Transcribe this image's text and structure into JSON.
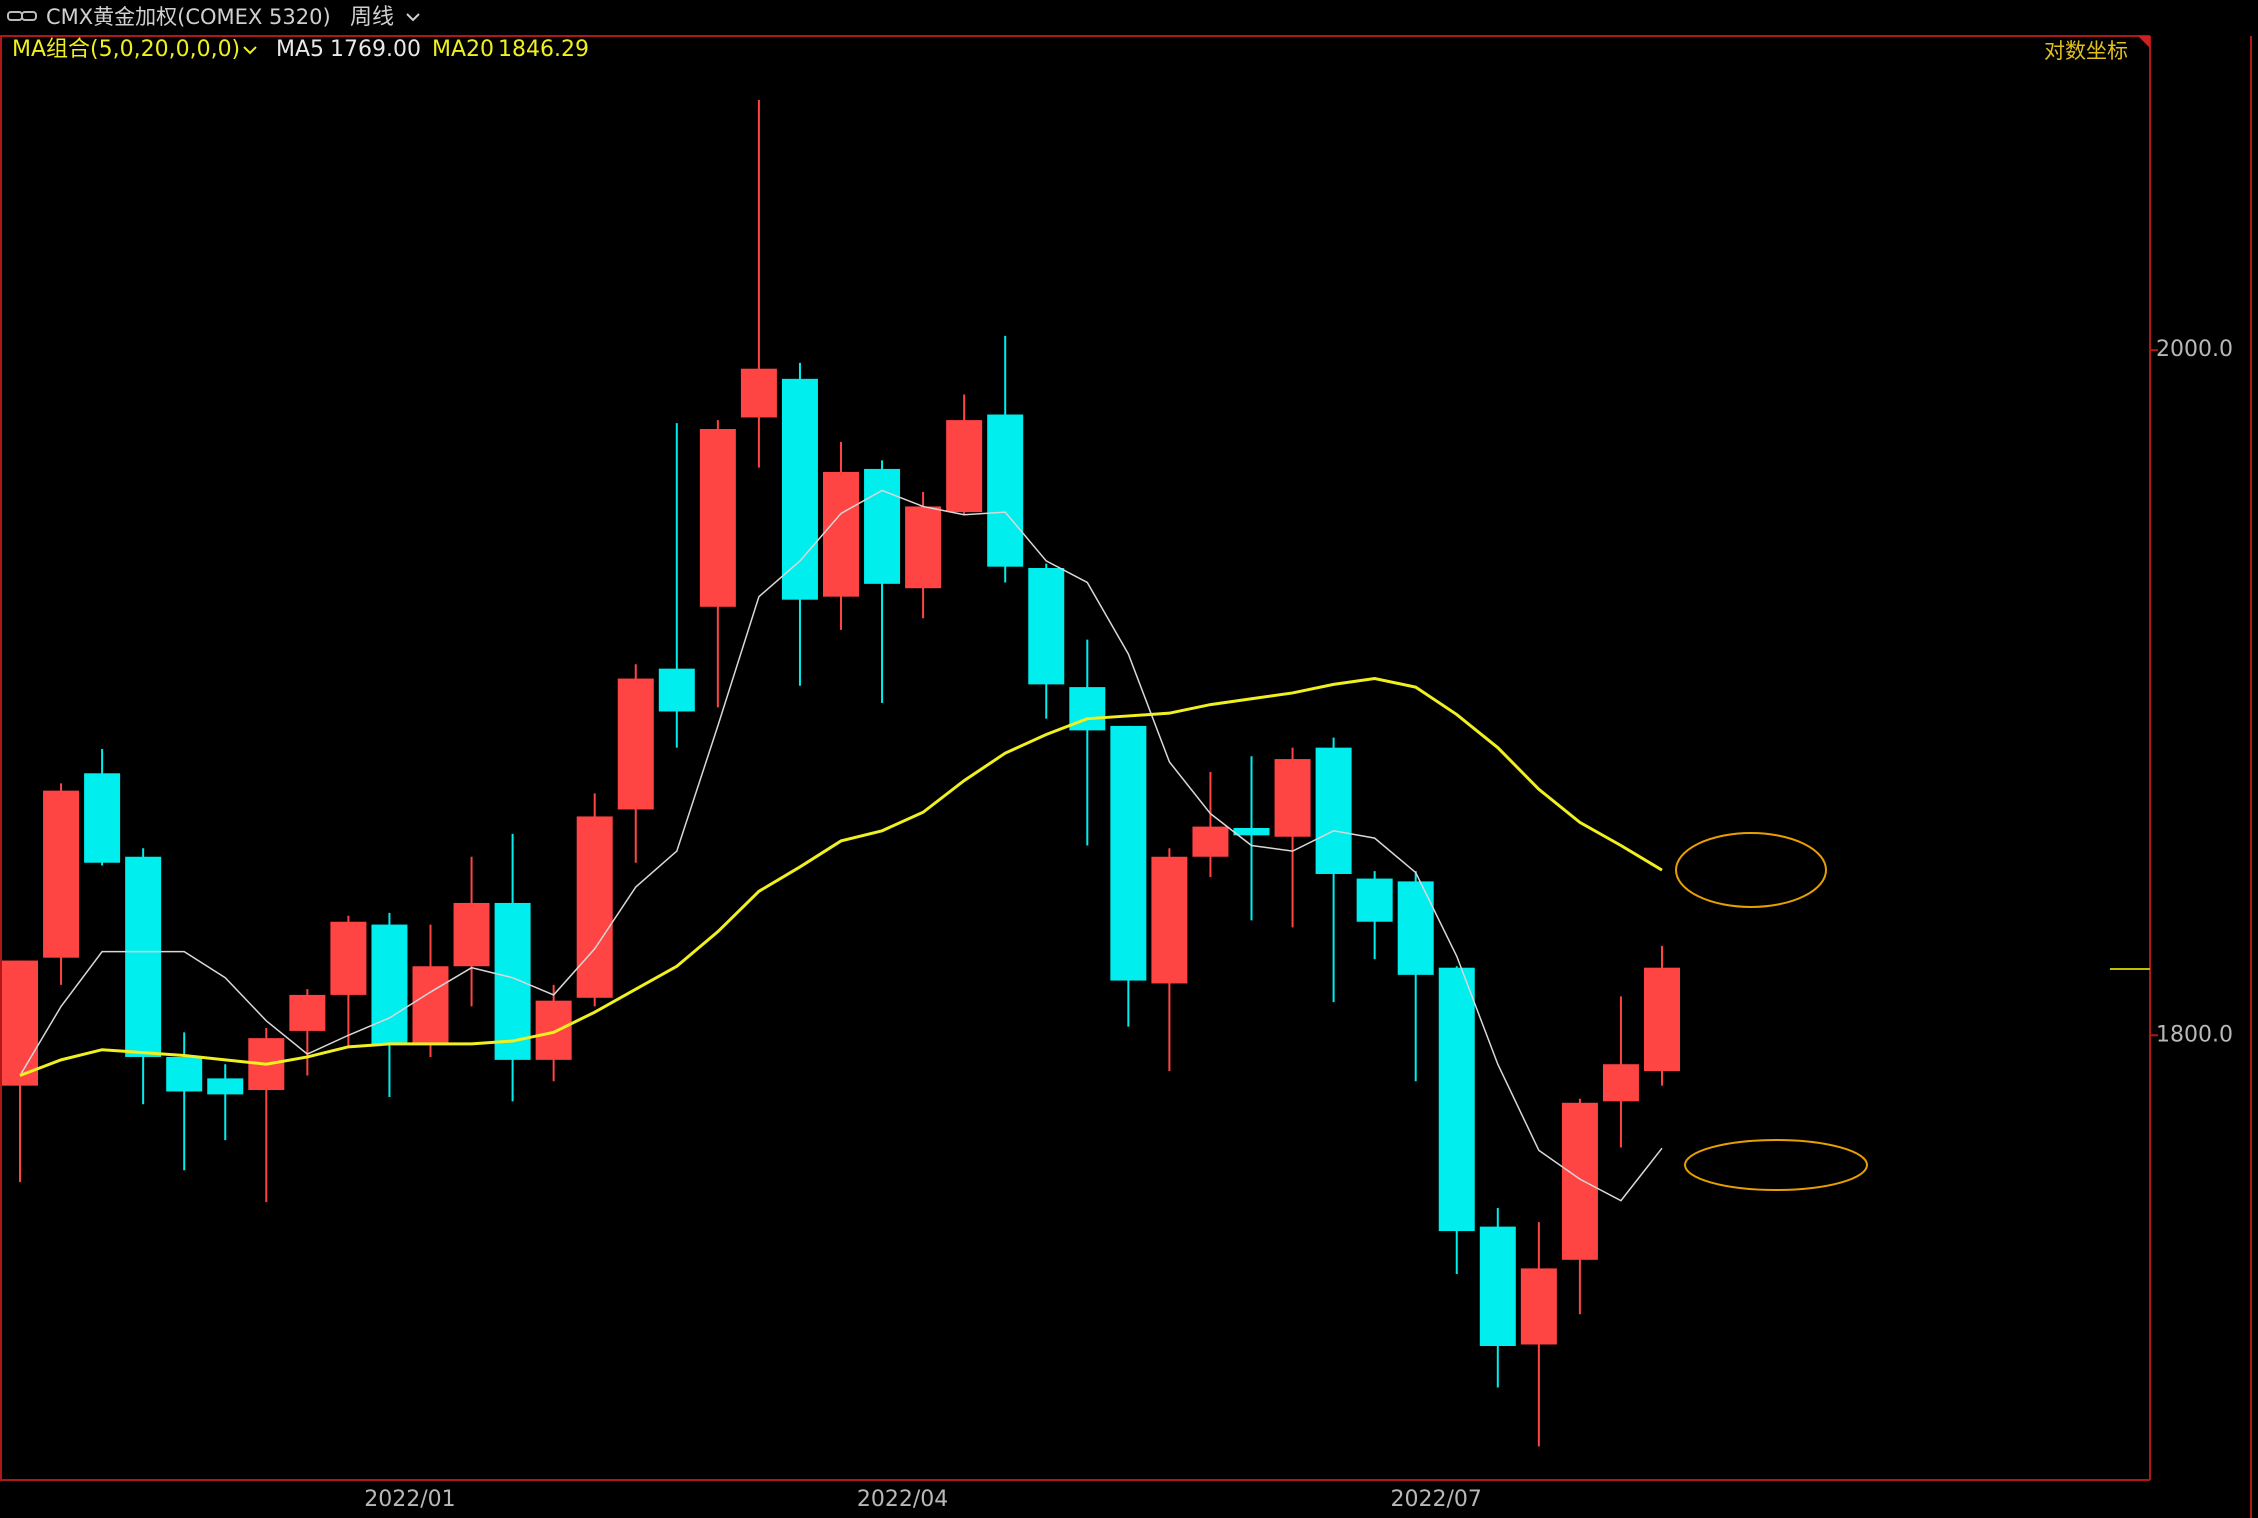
{
  "chart_data": {
    "type": "candlestick",
    "title": "CMX黄金加权(COMEX 5320)",
    "period": "周线",
    "indicator": "MA组合(5,0,20,0,0,0)",
    "scale_label": "对数坐标",
    "log": true,
    "up_color": "#ff4444",
    "down_color": "#00eeee",
    "categories": [
      null,
      null,
      null,
      null,
      null,
      null,
      null,
      null,
      null,
      null,
      "2022/01",
      null,
      null,
      null,
      null,
      null,
      null,
      null,
      null,
      null,
      null,
      null,
      "2022/04",
      null,
      null,
      null,
      null,
      null,
      null,
      null,
      null,
      null,
      null,
      null,
      null,
      "2022/07",
      null,
      null,
      null,
      null,
      null
    ],
    "open": [
      1786.1,
      1821.6,
      1874.0,
      1850.1,
      1794.0,
      1788.1,
      1784.9,
      1801.2,
      1811.2,
      1830.9,
      1797.6,
      1819.2,
      1837.0,
      1793.2,
      1810.4,
      1863.6,
      1904.4,
      1922.6,
      1979.4,
      1991.2,
      1925.6,
      1963.8,
      1928.1,
      1950.8,
      1980.3,
      1934.1,
      1899.0,
      1887.7,
      1814.4,
      1850.1,
      1858.3,
      1855.8,
      1881.4,
      1843.9,
      1843.1,
      1818.8,
      1747.8,
      1716.4,
      1738.9,
      1781.8,
      1790.1
    ],
    "high": [
      1820.8,
      1871.1,
      1881.0,
      1852.5,
      1800.8,
      1792.0,
      1802.0,
      1812.8,
      1833.4,
      1834.2,
      1830.9,
      1850.1,
      1856.6,
      1814.0,
      1868.2,
      1905.7,
      1977.7,
      1978.6,
      2078.5,
      1996.1,
      1972.0,
      1966.4,
      1956.9,
      1986.4,
      2004.4,
      1935.4,
      1912.9,
      1887.7,
      1852.5,
      1874.4,
      1878.9,
      1881.4,
      1884.3,
      1846.0,
      1846.0,
      1819.2,
      1752.8,
      1749.0,
      1782.5,
      1810.8,
      1824.9
    ],
    "low": [
      1759.8,
      1814.0,
      1847.6,
      1781.0,
      1763.0,
      1771.2,
      1754.4,
      1788.9,
      1796.8,
      1783.0,
      1794.0,
      1808.0,
      1781.8,
      1787.3,
      1808.0,
      1848.4,
      1881.4,
      1893.1,
      1964.2,
      1899.4,
      1915.8,
      1894.4,
      1919.2,
      1950.0,
      1929.8,
      1889.8,
      1853.3,
      1802.4,
      1790.1,
      1844.3,
      1832.1,
      1830.1,
      1809.2,
      1821.2,
      1787.3,
      1735.1,
      1705.1,
      1689.7,
      1724.4,
      1769.2,
      1786.1
    ],
    "close": [
      1820.8,
      1869.0,
      1848.4,
      1794.0,
      1784.5,
      1783.7,
      1799.2,
      1811.2,
      1831.7,
      1797.6,
      1819.2,
      1837.0,
      1793.2,
      1809.6,
      1861.6,
      1901.5,
      1891.9,
      1975.9,
      1994.3,
      1924.7,
      1962.9,
      1929.4,
      1952.5,
      1978.6,
      1934.5,
      1899.8,
      1886.4,
      1815.2,
      1850.1,
      1858.7,
      1856.2,
      1878.1,
      1845.2,
      1831.7,
      1816.8,
      1746.6,
      1716.0,
      1736.6,
      1781.4,
      1792.0,
      1818.8
    ],
    "series": [
      {
        "name": "MA5",
        "color": "#d8d8d8",
        "last": {
          "value": 1769,
          "label": "1769.00"
        },
        "values": [
          1788.9,
          1808.0,
          1823.3,
          1823.3,
          1823.3,
          1816.0,
          1804.0,
          1794.8,
          1800.0,
          1804.8,
          1812.0,
          1818.8,
          1816.0,
          1811.2,
          1824.1,
          1841.5,
          1851.7,
          1887.7,
          1925.6,
          1936.2,
          1950.4,
          1957.3,
          1952.5,
          1950.0,
          1950.8,
          1936.2,
          1929.8,
          1908.7,
          1877.3,
          1862.4,
          1853.3,
          1851.7,
          1857.5,
          1855.4,
          1845.6,
          1822.0,
          1792.0,
          1768.4,
          1760.6,
          1754.8,
          1769
        ]
      },
      {
        "name": "MA20",
        "color": "#f0f020",
        "last": {
          "value": 1846.29,
          "label": "1846.29"
        },
        "values": [
          1788.9,
          1793.2,
          1796.0,
          1795.2,
          1794.4,
          1793.2,
          1792.0,
          1794.0,
          1796.8,
          1797.6,
          1797.6,
          1797.6,
          1798.4,
          1800.8,
          1806.4,
          1812.8,
          1819.2,
          1828.9,
          1840.3,
          1847.2,
          1854.6,
          1857.5,
          1862.8,
          1871.9,
          1879.8,
          1885.2,
          1889.8,
          1890.6,
          1891.4,
          1893.9,
          1895.6,
          1897.3,
          1899.8,
          1901.5,
          1899.0,
          1891.0,
          1881.4,
          1869.4,
          1859.9,
          1853.3,
          1846.29
        ]
      }
    ],
    "ylim": [
      1681,
      2099
    ],
    "yticks": [
      {
        "value": 1800,
        "label": "1800.0"
      },
      {
        "value": 2000,
        "label": "2000.0"
      }
    ]
  }
}
